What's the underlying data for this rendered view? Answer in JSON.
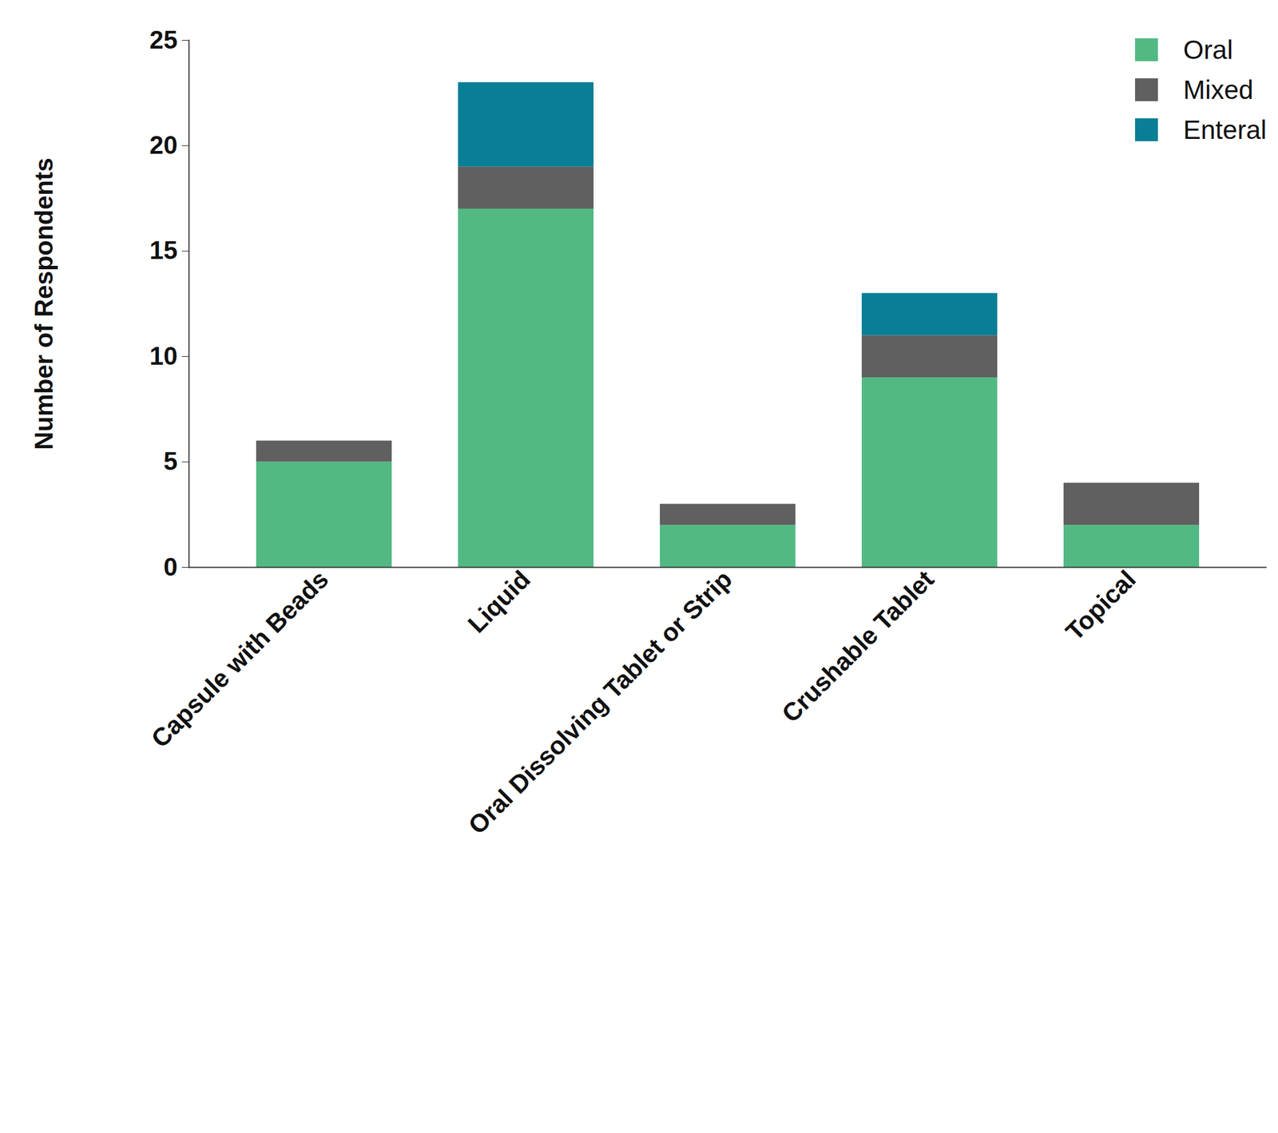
{
  "chart_data": {
    "type": "bar",
    "stacked": true,
    "grid": false,
    "legend": "top-right",
    "y_label": "Number of Respondents",
    "categories": [
      "Capsule with Beads",
      "Liquid",
      "Oral Dissolving Tablet or Strip",
      "Crushable Tablet",
      "Topical"
    ],
    "series": [
      {
        "name": "Oral",
        "color": "#52b983",
        "values": [
          5,
          17,
          2,
          9,
          2
        ]
      },
      {
        "name": "Mixed",
        "color": "#606060",
        "values": [
          1,
          2,
          1,
          2,
          2
        ]
      },
      {
        "name": "Enteral",
        "color": "#087f96",
        "values": [
          0,
          4,
          0,
          2,
          0
        ]
      }
    ],
    "ylim": [
      0,
      25
    ],
    "yticks": [
      0,
      5,
      10,
      15,
      20,
      25
    ]
  }
}
